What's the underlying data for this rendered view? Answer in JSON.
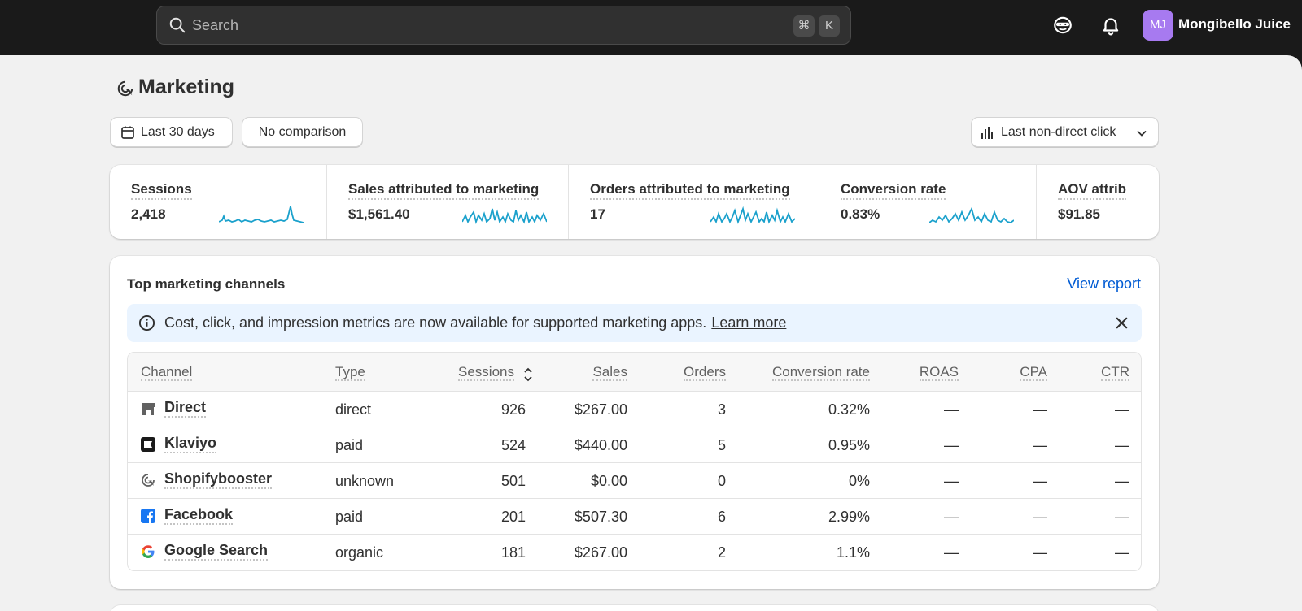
{
  "topbar": {
    "search_placeholder": "Search",
    "shortcut_cmd": "⌘",
    "shortcut_key": "K",
    "avatar_initials": "MJ",
    "store_name": "Mongibello Juice",
    "avatar_color": "#a77af0"
  },
  "page": {
    "title": "Marketing",
    "date_range": "Last 30 days",
    "comparison": "No comparison",
    "attribution_model": "Last non-direct click"
  },
  "metrics": [
    {
      "label": "Sessions",
      "value": "2,418"
    },
    {
      "label": "Sales attributed to marketing",
      "value": "$1,561.40"
    },
    {
      "label": "Orders attributed to marketing",
      "value": "17"
    },
    {
      "label": "Conversion rate",
      "value": "0.83%"
    },
    {
      "label": "AOV attrib",
      "value": "$91.85"
    }
  ],
  "channels_card": {
    "title": "Top marketing channels",
    "view_report": "View report",
    "banner_text": "Cost, click, and impression metrics are now available for supported marketing apps.",
    "banner_link": "Learn more",
    "columns": {
      "channel": "Channel",
      "type": "Type",
      "sessions": "Sessions",
      "sales": "Sales",
      "orders": "Orders",
      "conversion": "Conversion rate",
      "roas": "ROAS",
      "cpa": "CPA",
      "ctr": "CTR"
    },
    "rows": [
      {
        "channel": "Direct",
        "icon": "store-icon",
        "type": "direct",
        "sessions": "926",
        "sales": "$267.00",
        "orders": "3",
        "conversion": "0.32%",
        "roas": "—",
        "cpa": "—",
        "ctr": "—"
      },
      {
        "channel": "Klaviyo",
        "icon": "klaviyo-icon",
        "type": "paid",
        "sessions": "524",
        "sales": "$440.00",
        "orders": "5",
        "conversion": "0.95%",
        "roas": "—",
        "cpa": "—",
        "ctr": "—"
      },
      {
        "channel": "Shopifybooster",
        "icon": "target-icon",
        "type": "unknown",
        "sessions": "501",
        "sales": "$0.00",
        "orders": "0",
        "conversion": "0%",
        "roas": "—",
        "cpa": "—",
        "ctr": "—"
      },
      {
        "channel": "Facebook",
        "icon": "facebook-icon",
        "type": "paid",
        "sessions": "201",
        "sales": "$507.30",
        "orders": "6",
        "conversion": "2.99%",
        "roas": "—",
        "cpa": "—",
        "ctr": "—"
      },
      {
        "channel": "Google Search",
        "icon": "google-icon",
        "type": "organic",
        "sessions": "181",
        "sales": "$267.00",
        "orders": "2",
        "conversion": "1.1%",
        "roas": "—",
        "cpa": "—",
        "ctr": "—"
      }
    ]
  },
  "colors": {
    "topbar": "#1a1a1a",
    "link": "#005bd3",
    "sparkline": "#1ba1cc",
    "banner": "#eaf4ff"
  }
}
